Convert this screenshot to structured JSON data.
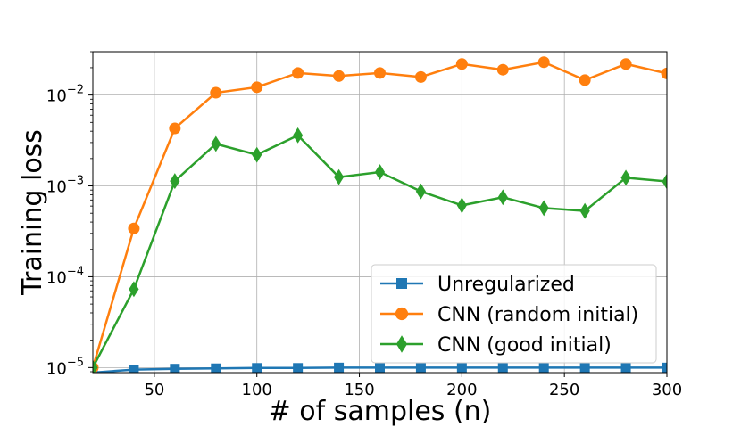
{
  "chart_data": {
    "type": "line",
    "title": "",
    "xlabel": "# of samples (n)",
    "ylabel": "Training loss",
    "xscale": "linear",
    "yscale": "log",
    "xlim": [
      20,
      300
    ],
    "ylim": [
      8.8e-06,
      0.03
    ],
    "grid": true,
    "legend_position": "lower-right",
    "x_ticks": [
      50,
      100,
      150,
      200,
      250,
      300
    ],
    "x_tick_labels": [
      "50",
      "100",
      "150",
      "200",
      "250",
      "300"
    ],
    "y_ticks": [
      1e-05,
      0.0001,
      0.001,
      0.01
    ],
    "y_tick_labels": [
      {
        "base": "10",
        "exp": "−5"
      },
      {
        "base": "10",
        "exp": "−4"
      },
      {
        "base": "10",
        "exp": "−3"
      },
      {
        "base": "10",
        "exp": "−2"
      }
    ],
    "x": [
      20,
      40,
      60,
      80,
      100,
      120,
      140,
      160,
      180,
      200,
      220,
      240,
      260,
      280,
      300
    ],
    "series": [
      {
        "name": "Unregularized",
        "color": "#1f77b4",
        "marker": "square",
        "values": [
          8.8e-06,
          9.5e-06,
          9.7e-06,
          9.8e-06,
          9.9e-06,
          9.9e-06,
          1e-05,
          1e-05,
          1e-05,
          1e-05,
          1e-05,
          1e-05,
          1e-05,
          1e-05,
          1e-05
        ]
      },
      {
        "name": "CNN (random initial)",
        "color": "#ff7f0e",
        "marker": "circle",
        "values": [
          1e-05,
          0.00034,
          0.0043,
          0.0106,
          0.0122,
          0.0175,
          0.0162,
          0.0175,
          0.0158,
          0.022,
          0.019,
          0.023,
          0.0146,
          0.022,
          0.0173
        ]
      },
      {
        "name": "CNN (good initial)",
        "color": "#2ca02c",
        "marker": "diamond",
        "values": [
          1e-05,
          7.3e-05,
          0.00113,
          0.0029,
          0.0022,
          0.0036,
          0.00125,
          0.00142,
          0.00087,
          0.00061,
          0.00075,
          0.00057,
          0.00053,
          0.00123,
          0.00112
        ]
      }
    ]
  }
}
